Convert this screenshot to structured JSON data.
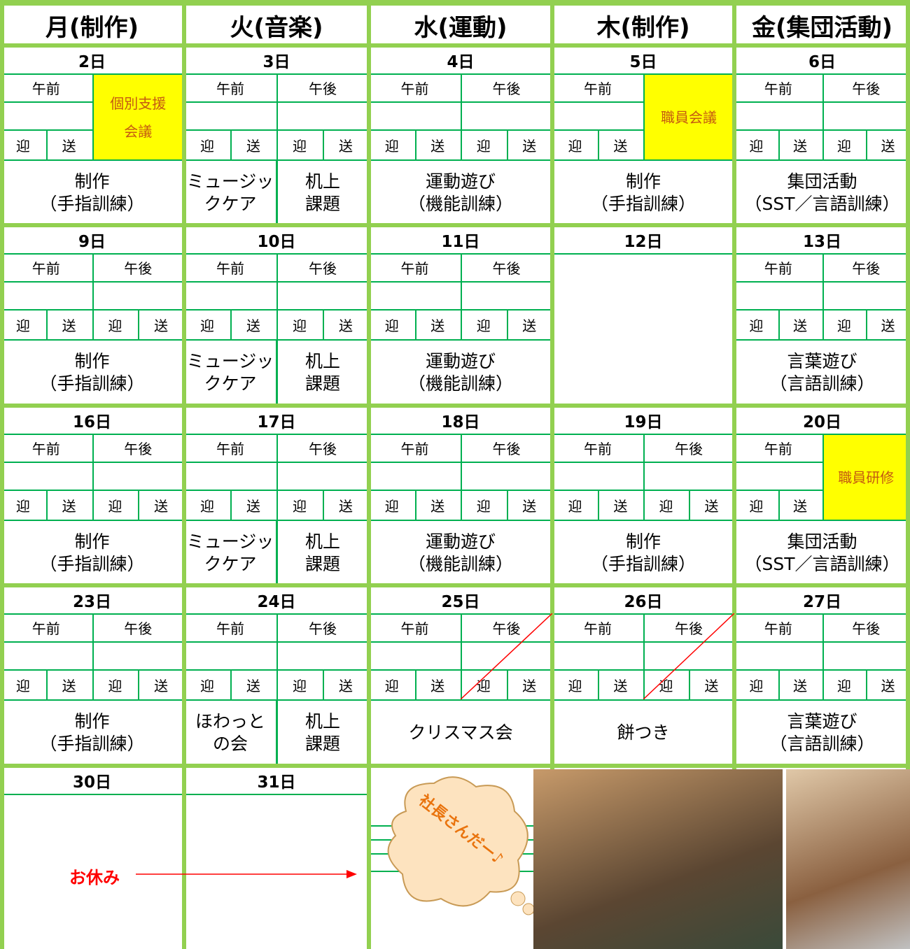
{
  "header": {
    "columns": [
      "月(制作)",
      "火(音楽)",
      "水(運動)",
      "木(制作)",
      "金(集団活動)"
    ]
  },
  "weeks": [
    {
      "days": [
        {
          "date": "2日",
          "slots": [
            "午前"
          ],
          "note": [
            "個別支援",
            "会議"
          ],
          "transport": [
            "迎",
            "送"
          ],
          "activities": [
            [
              "制作",
              "（手指訓練）"
            ]
          ]
        },
        {
          "date": "3日",
          "slots": [
            "午前",
            "午後"
          ],
          "transport": [
            "迎",
            "送",
            "迎",
            "送"
          ],
          "activities": [
            [
              "ミュージッ",
              "クケア"
            ],
            [
              "机上",
              "課題"
            ]
          ]
        },
        {
          "date": "4日",
          "slots": [
            "午前",
            "午後"
          ],
          "transport": [
            "迎",
            "送",
            "迎",
            "送"
          ],
          "activities": [
            [
              "運動遊び",
              "（機能訓練）"
            ]
          ]
        },
        {
          "date": "5日",
          "slots": [
            "午前"
          ],
          "note": [
            "職員会議"
          ],
          "transport": [
            "迎",
            "送"
          ],
          "activities": [
            [
              "制作",
              "（手指訓練）"
            ]
          ]
        },
        {
          "date": "6日",
          "slots": [
            "午前",
            "午後"
          ],
          "transport": [
            "迎",
            "送",
            "迎",
            "送"
          ],
          "activities": [
            [
              "集団活動",
              "（SST／言語訓練）"
            ]
          ]
        }
      ]
    },
    {
      "days": [
        {
          "date": "9日",
          "slots": [
            "午前",
            "午後"
          ],
          "transport": [
            "迎",
            "送",
            "迎",
            "送"
          ],
          "activities": [
            [
              "制作",
              "（手指訓練）"
            ]
          ]
        },
        {
          "date": "10日",
          "slots": [
            "午前",
            "午後"
          ],
          "transport": [
            "迎",
            "送",
            "迎",
            "送"
          ],
          "activities": [
            [
              "ミュージッ",
              "クケア"
            ],
            [
              "机上",
              "課題"
            ]
          ]
        },
        {
          "date": "11日",
          "slots": [
            "午前",
            "午後"
          ],
          "transport": [
            "迎",
            "送",
            "迎",
            "送"
          ],
          "activities": [
            [
              "運動遊び",
              "（機能訓練）"
            ]
          ]
        },
        {
          "date": "12日"
        },
        {
          "date": "13日",
          "slots": [
            "午前",
            "午後"
          ],
          "transport": [
            "迎",
            "送",
            "迎",
            "送"
          ],
          "activities": [
            [
              "言葉遊び",
              "（言語訓練）"
            ]
          ]
        }
      ]
    },
    {
      "days": [
        {
          "date": "16日",
          "slots": [
            "午前",
            "午後"
          ],
          "transport": [
            "迎",
            "送",
            "迎",
            "送"
          ],
          "activities": [
            [
              "制作",
              "（手指訓練）"
            ]
          ]
        },
        {
          "date": "17日",
          "slots": [
            "午前",
            "午後"
          ],
          "transport": [
            "迎",
            "送",
            "迎",
            "送"
          ],
          "activities": [
            [
              "ミュージッ",
              "クケア"
            ],
            [
              "机上",
              "課題"
            ]
          ]
        },
        {
          "date": "18日",
          "slots": [
            "午前",
            "午後"
          ],
          "transport": [
            "迎",
            "送",
            "迎",
            "送"
          ],
          "activities": [
            [
              "運動遊び",
              "（機能訓練）"
            ]
          ]
        },
        {
          "date": "19日",
          "slots": [
            "午前",
            "午後"
          ],
          "transport": [
            "迎",
            "送",
            "迎",
            "送"
          ],
          "activities": [
            [
              "制作",
              "（手指訓練）"
            ]
          ]
        },
        {
          "date": "20日",
          "slots": [
            "午前"
          ],
          "note": [
            "職員研修"
          ],
          "transport": [
            "迎",
            "送"
          ],
          "activities": [
            [
              "集団活動",
              "（SST／言語訓練）"
            ]
          ]
        }
      ]
    },
    {
      "days": [
        {
          "date": "23日",
          "slots": [
            "午前",
            "午後"
          ],
          "transport": [
            "迎",
            "送",
            "迎",
            "送"
          ],
          "activities": [
            [
              "制作",
              "（手指訓練）"
            ]
          ]
        },
        {
          "date": "24日",
          "slots": [
            "午前",
            "午後"
          ],
          "transport": [
            "迎",
            "送",
            "迎",
            "送"
          ],
          "activities": [
            [
              "ほわっと",
              "の会"
            ],
            [
              "机上",
              "課題"
            ]
          ]
        },
        {
          "date": "25日",
          "slots": [
            "午前",
            "午後"
          ],
          "transport": [
            "迎",
            "送",
            "迎",
            "送"
          ],
          "activities": [
            [
              "クリスマス会"
            ]
          ]
        },
        {
          "date": "26日",
          "slots": [
            "午前",
            "午後"
          ],
          "transport": [
            "迎",
            "送",
            "迎",
            "送"
          ],
          "activities": [
            [
              "餅つき"
            ]
          ]
        },
        {
          "date": "27日",
          "slots": [
            "午前",
            "午後"
          ],
          "transport": [
            "迎",
            "送",
            "迎",
            "送"
          ],
          "activities": [
            [
              "言葉遊び",
              "（言語訓練）"
            ]
          ]
        }
      ]
    },
    {
      "days": [
        {
          "date": "30日"
        },
        {
          "date": "31日"
        }
      ]
    }
  ],
  "annotations": {
    "holiday": "お休み",
    "bubble": "社長さんだー♪"
  }
}
